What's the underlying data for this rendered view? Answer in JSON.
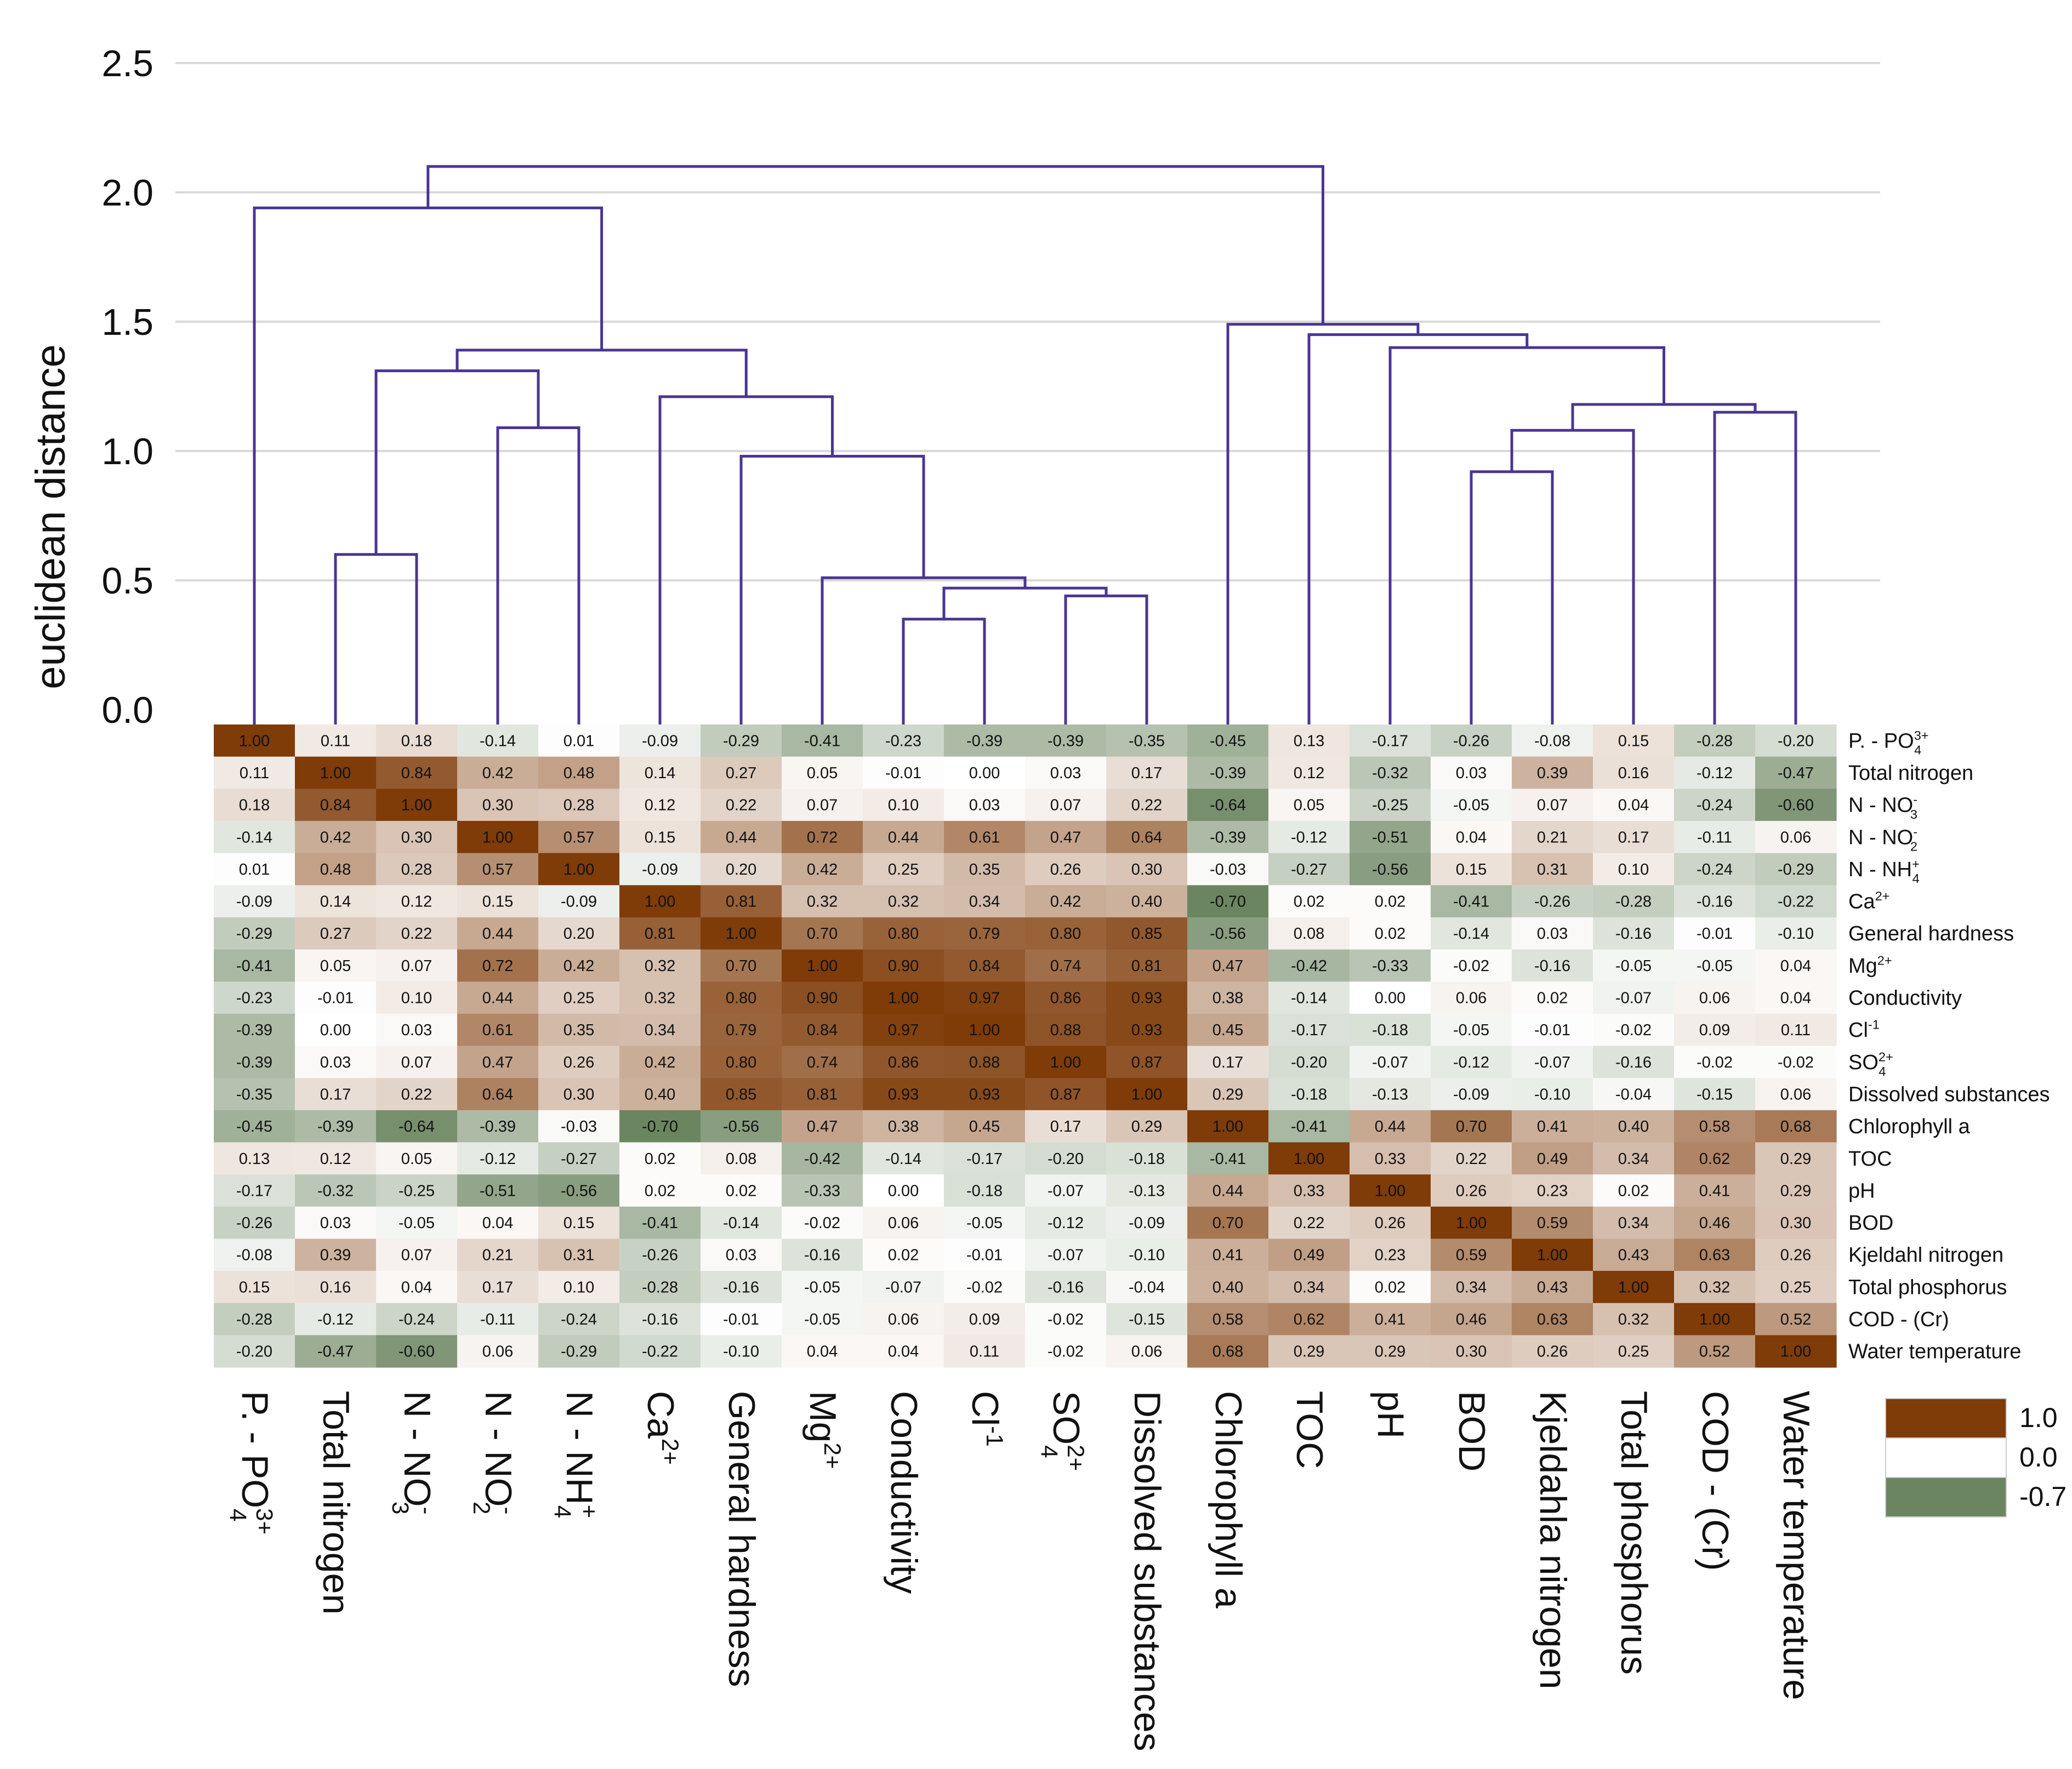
{
  "chart_data": {
    "type": "heatmap",
    "ylabel": "euclidean distance",
    "dendrogram": {
      "yticks": [
        "0.0",
        "0.5",
        "1.0",
        "1.5",
        "2.0",
        "2.5"
      ],
      "ylim": [
        0,
        2.5
      ],
      "grid": true,
      "merges": [
        {
          "a": "Conductivity",
          "b": "Cl-1",
          "height": 0.35
        },
        {
          "a": "SO4 2+",
          "b": "Dissolved substances",
          "height": 0.44
        },
        {
          "a": "Conductivity+Cl",
          "b": "SO4+Dissolved",
          "height": 0.47
        },
        {
          "a": "Mg 2+",
          "b": "Conductivity+Cl+SO4+Dissolved",
          "height": 0.51
        },
        {
          "a": "Total nitrogen",
          "b": "N - NO3",
          "height": 0.6
        },
        {
          "a": "General hardness",
          "b": "Mg cluster",
          "height": 0.98
        },
        {
          "a": "N - NO2",
          "b": "N - NH4",
          "height": 1.09
        },
        {
          "a": "Ca 2+",
          "b": "hardness cluster",
          "height": 1.21
        },
        {
          "a": "TN+NO3",
          "b": "NO2+NH4",
          "height": 1.31
        },
        {
          "a": "nitrogen cluster",
          "b": "ion cluster",
          "height": 1.39
        },
        {
          "a": "P - PO4 3+",
          "b": "left cluster",
          "height": 1.94
        },
        {
          "a": "BOD",
          "b": "Kjeldahla nitrogen",
          "height": 0.92
        },
        {
          "a": "BOD+Kjeldahla",
          "b": "Total phosphorus",
          "height": 1.08
        },
        {
          "a": "COD - (Cr)",
          "b": "Water temperature",
          "height": 1.15
        },
        {
          "a": "BOD+Kjeldahla+TP",
          "b": "COD+WT",
          "height": 1.18
        },
        {
          "a": "pH",
          "b": "organic cluster",
          "height": 1.4
        },
        {
          "a": "TOC",
          "b": "pH cluster",
          "height": 1.45
        },
        {
          "a": "Chlorophyll a",
          "b": "TOC cluster",
          "height": 1.49
        },
        {
          "a": "left tree",
          "b": "right tree",
          "height": 2.1
        }
      ]
    },
    "columns": [
      {
        "pre": "P. - PO",
        "sub": "4",
        "sup": "3+"
      },
      {
        "pre": "Total nitrogen",
        "sub": "",
        "sup": ""
      },
      {
        "pre": "N - NO",
        "sub": "3",
        "sup": "-"
      },
      {
        "pre": "N - NO",
        "sub": "2",
        "sup": "-"
      },
      {
        "pre": "N - NH",
        "sub": "4",
        "sup": "+"
      },
      {
        "pre": "Ca",
        "sub": "",
        "sup": "2+"
      },
      {
        "pre": "General hardness",
        "sub": "",
        "sup": ""
      },
      {
        "pre": "Mg",
        "sub": "",
        "sup": "2+"
      },
      {
        "pre": "Conductivity",
        "sub": "",
        "sup": ""
      },
      {
        "pre": "Cl",
        "sub": "",
        "sup": "-1"
      },
      {
        "pre": "SO",
        "sub": "4",
        "sup": "2+"
      },
      {
        "pre": "Dissolved substances",
        "sub": "",
        "sup": ""
      },
      {
        "pre": "Chlorophyll a",
        "sub": "",
        "sup": ""
      },
      {
        "pre": "TOC",
        "sub": "",
        "sup": ""
      },
      {
        "pre": "pH",
        "sub": "",
        "sup": ""
      },
      {
        "pre": "BOD",
        "sub": "",
        "sup": ""
      },
      {
        "pre": "Kjeldahla nitrogen",
        "sub": "",
        "sup": ""
      },
      {
        "pre": "Total phosphorus",
        "sub": "",
        "sup": ""
      },
      {
        "pre": "COD - (Cr)",
        "sub": "",
        "sup": ""
      },
      {
        "pre": "Water temperature",
        "sub": "",
        "sup": ""
      }
    ],
    "rows": [
      {
        "pre": "P. - PO",
        "sub": "4",
        "sup": "3+"
      },
      {
        "pre": "Total nitrogen",
        "sub": "",
        "sup": ""
      },
      {
        "pre": "N - NO",
        "sub": "3",
        "sup": "-"
      },
      {
        "pre": "N - NO",
        "sub": "2",
        "sup": "-"
      },
      {
        "pre": "N - NH",
        "sub": "4",
        "sup": "+"
      },
      {
        "pre": "Ca",
        "sub": "",
        "sup": "2+"
      },
      {
        "pre": "General hardness",
        "sub": "",
        "sup": ""
      },
      {
        "pre": "Mg",
        "sub": "",
        "sup": "2+"
      },
      {
        "pre": "Conductivity",
        "sub": "",
        "sup": ""
      },
      {
        "pre": "Cl",
        "sub": "",
        "sup": "-1"
      },
      {
        "pre": "SO",
        "sub": "4",
        "sup": "2+"
      },
      {
        "pre": "Dissolved substances",
        "sub": "",
        "sup": ""
      },
      {
        "pre": "Chlorophyll a",
        "sub": "",
        "sup": ""
      },
      {
        "pre": "TOC",
        "sub": "",
        "sup": ""
      },
      {
        "pre": "pH",
        "sub": "",
        "sup": ""
      },
      {
        "pre": "BOD",
        "sub": "",
        "sup": ""
      },
      {
        "pre": "Kjeldahl nitrogen",
        "sub": "",
        "sup": ""
      },
      {
        "pre": "Total phosphorus",
        "sub": "",
        "sup": ""
      },
      {
        "pre": "COD - (Cr)",
        "sub": "",
        "sup": ""
      },
      {
        "pre": "Water temperature",
        "sub": "",
        "sup": ""
      }
    ],
    "matrix": [
      [
        "1.00",
        "0.11",
        "0.18",
        "-0.14",
        "0.01",
        "-0.09",
        "-0.29",
        "-0.41",
        "-0.23",
        "-0.39",
        "-0.39",
        "-0.35",
        "-0.45",
        "0.13",
        "-0.17",
        "-0.26",
        "-0.08",
        "0.15",
        "-0.28",
        "-0.20"
      ],
      [
        "0.11",
        "1.00",
        "0.84",
        "0.42",
        "0.48",
        "0.14",
        "0.27",
        "0.05",
        "-0.01",
        "0.00",
        "0.03",
        "0.17",
        "-0.39",
        "0.12",
        "-0.32",
        "0.03",
        "0.39",
        "0.16",
        "-0.12",
        "-0.47"
      ],
      [
        "0.18",
        "0.84",
        "1.00",
        "0.30",
        "0.28",
        "0.12",
        "0.22",
        "0.07",
        "0.10",
        "0.03",
        "0.07",
        "0.22",
        "-0.64",
        "0.05",
        "-0.25",
        "-0.05",
        "0.07",
        "0.04",
        "-0.24",
        "-0.60"
      ],
      [
        "-0.14",
        "0.42",
        "0.30",
        "1.00",
        "0.57",
        "0.15",
        "0.44",
        "0.72",
        "0.44",
        "0.61",
        "0.47",
        "0.64",
        "-0.39",
        "-0.12",
        "-0.51",
        "0.04",
        "0.21",
        "0.17",
        "-0.11",
        "0.06"
      ],
      [
        "0.01",
        "0.48",
        "0.28",
        "0.57",
        "1.00",
        "-0.09",
        "0.20",
        "0.42",
        "0.25",
        "0.35",
        "0.26",
        "0.30",
        "-0.03",
        "-0.27",
        "-0.56",
        "0.15",
        "0.31",
        "0.10",
        "-0.24",
        "-0.29"
      ],
      [
        "-0.09",
        "0.14",
        "0.12",
        "0.15",
        "-0.09",
        "1.00",
        "0.81",
        "0.32",
        "0.32",
        "0.34",
        "0.42",
        "0.40",
        "-0.70",
        "0.02",
        "0.02",
        "-0.41",
        "-0.26",
        "-0.28",
        "-0.16",
        "-0.22"
      ],
      [
        "-0.29",
        "0.27",
        "0.22",
        "0.44",
        "0.20",
        "0.81",
        "1.00",
        "0.70",
        "0.80",
        "0.79",
        "0.80",
        "0.85",
        "-0.56",
        "0.08",
        "0.02",
        "-0.14",
        "0.03",
        "-0.16",
        "-0.01",
        "-0.10"
      ],
      [
        "-0.41",
        "0.05",
        "0.07",
        "0.72",
        "0.42",
        "0.32",
        "0.70",
        "1.00",
        "0.90",
        "0.84",
        "0.74",
        "0.81",
        "0.47",
        "-0.42",
        "-0.33",
        "-0.02",
        "-0.16",
        "-0.05",
        "-0.05",
        "0.04"
      ],
      [
        "-0.23",
        "-0.01",
        "0.10",
        "0.44",
        "0.25",
        "0.32",
        "0.80",
        "0.90",
        "1.00",
        "0.97",
        "0.86",
        "0.93",
        "0.38",
        "-0.14",
        "0.00",
        "0.06",
        "0.02",
        "-0.07",
        "0.06",
        "0.04"
      ],
      [
        "-0.39",
        "0.00",
        "0.03",
        "0.61",
        "0.35",
        "0.34",
        "0.79",
        "0.84",
        "0.97",
        "1.00",
        "0.88",
        "0.93",
        "0.45",
        "-0.17",
        "-0.18",
        "-0.05",
        "-0.01",
        "-0.02",
        "0.09",
        "0.11"
      ],
      [
        "-0.39",
        "0.03",
        "0.07",
        "0.47",
        "0.26",
        "0.42",
        "0.80",
        "0.74",
        "0.86",
        "0.88",
        "1.00",
        "0.87",
        "0.17",
        "-0.20",
        "-0.07",
        "-0.12",
        "-0.07",
        "-0.16",
        "-0.02",
        "-0.02"
      ],
      [
        "-0.35",
        "0.17",
        "0.22",
        "0.64",
        "0.30",
        "0.40",
        "0.85",
        "0.81",
        "0.93",
        "0.93",
        "0.87",
        "1.00",
        "0.29",
        "-0.18",
        "-0.13",
        "-0.09",
        "-0.10",
        "-0.04",
        "-0.15",
        "0.06"
      ],
      [
        "-0.45",
        "-0.39",
        "-0.64",
        "-0.39",
        "-0.03",
        "-0.70",
        "-0.56",
        "0.47",
        "0.38",
        "0.45",
        "0.17",
        "0.29",
        "1.00",
        "-0.41",
        "0.44",
        "0.70",
        "0.41",
        "0.40",
        "0.58",
        "0.68"
      ],
      [
        "0.13",
        "0.12",
        "0.05",
        "-0.12",
        "-0.27",
        "0.02",
        "0.08",
        "-0.42",
        "-0.14",
        "-0.17",
        "-0.20",
        "-0.18",
        "-0.41",
        "1.00",
        "0.33",
        "0.22",
        "0.49",
        "0.34",
        "0.62",
        "0.29"
      ],
      [
        "-0.17",
        "-0.32",
        "-0.25",
        "-0.51",
        "-0.56",
        "0.02",
        "0.02",
        "-0.33",
        "0.00",
        "-0.18",
        "-0.07",
        "-0.13",
        "0.44",
        "0.33",
        "1.00",
        "0.26",
        "0.23",
        "0.02",
        "0.41",
        "0.29"
      ],
      [
        "-0.26",
        "0.03",
        "-0.05",
        "0.04",
        "0.15",
        "-0.41",
        "-0.14",
        "-0.02",
        "0.06",
        "-0.05",
        "-0.12",
        "-0.09",
        "0.70",
        "0.22",
        "0.26",
        "1.00",
        "0.59",
        "0.34",
        "0.46",
        "0.30"
      ],
      [
        "-0.08",
        "0.39",
        "0.07",
        "0.21",
        "0.31",
        "-0.26",
        "0.03",
        "-0.16",
        "0.02",
        "-0.01",
        "-0.07",
        "-0.10",
        "0.41",
        "0.49",
        "0.23",
        "0.59",
        "1.00",
        "0.43",
        "0.63",
        "0.26"
      ],
      [
        "0.15",
        "0.16",
        "0.04",
        "0.17",
        "0.10",
        "-0.28",
        "-0.16",
        "-0.05",
        "-0.07",
        "-0.02",
        "-0.16",
        "-0.04",
        "0.40",
        "0.34",
        "0.02",
        "0.34",
        "0.43",
        "1.00",
        "0.32",
        "0.25"
      ],
      [
        "-0.28",
        "-0.12",
        "-0.24",
        "-0.11",
        "-0.24",
        "-0.16",
        "-0.01",
        "-0.05",
        "0.06",
        "0.09",
        "-0.02",
        "-0.15",
        "0.58",
        "0.62",
        "0.41",
        "0.46",
        "0.63",
        "0.32",
        "1.00",
        "0.52"
      ],
      [
        "-0.20",
        "-0.47",
        "-0.60",
        "0.06",
        "-0.29",
        "-0.22",
        "-0.10",
        "0.04",
        "0.04",
        "0.11",
        "-0.02",
        "0.06",
        "0.68",
        "0.29",
        "0.29",
        "0.30",
        "0.26",
        "0.25",
        "0.52",
        "1.00"
      ]
    ],
    "legend": {
      "labels": [
        "1.0",
        "0.0",
        "-0.7"
      ],
      "placement": "bottom-right",
      "colors": {
        "high": "#7f3b08",
        "mid": "#ffffff",
        "low": "#6b8560"
      }
    },
    "colors": {
      "dendrogram": "#4b3592",
      "significant_text": "#e8402a",
      "text": "#111111",
      "grid": "#d9d9d9"
    }
  }
}
